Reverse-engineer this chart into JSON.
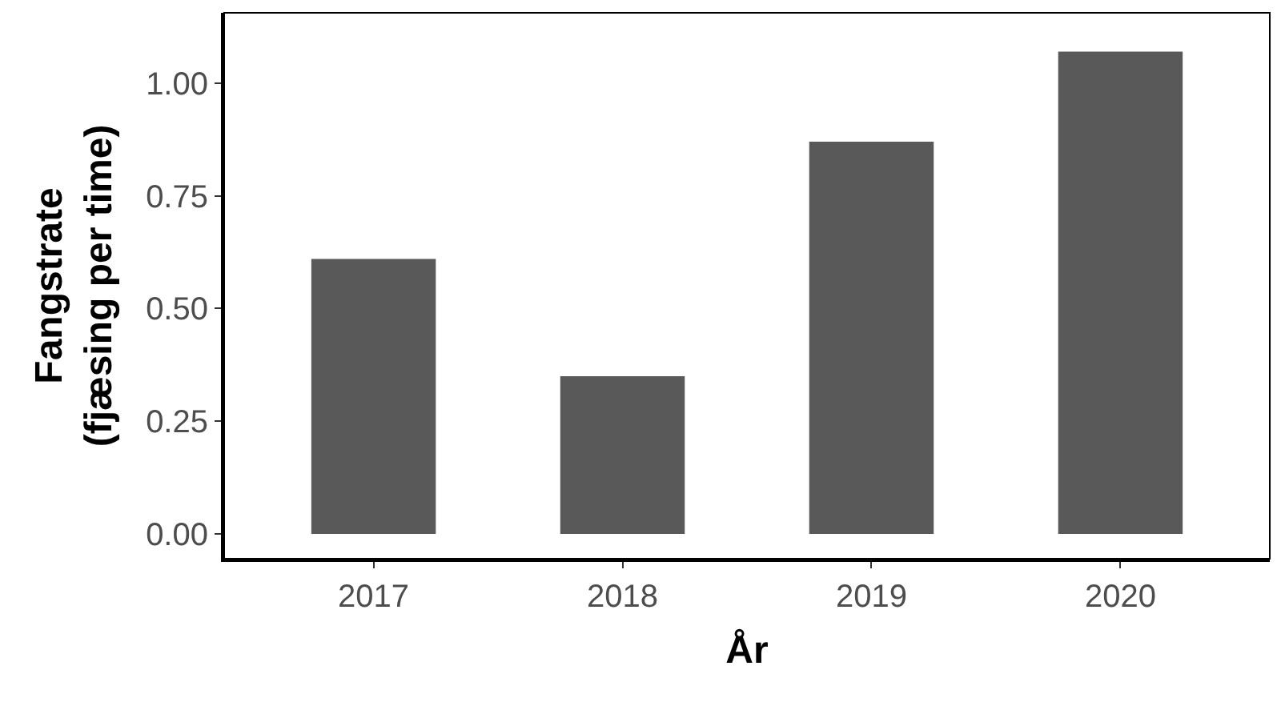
{
  "chart_data": {
    "type": "bar",
    "categories": [
      "2017",
      "2018",
      "2019",
      "2020"
    ],
    "values": [
      0.61,
      0.35,
      0.87,
      1.07
    ],
    "color": "#595959",
    "xlabel": "År",
    "ylabel": "Fangstrate\n(fjæsing per time)",
    "ylim": [
      -0.055,
      1.156
    ],
    "yticks": [
      {
        "value": 0,
        "label": "0.00"
      },
      {
        "value": 0.25,
        "label": "0.25"
      },
      {
        "value": 0.5,
        "label": "0.50"
      },
      {
        "value": 0.75,
        "label": "0.75"
      },
      {
        "value": 1,
        "label": "1.00"
      }
    ],
    "legend": false
  }
}
